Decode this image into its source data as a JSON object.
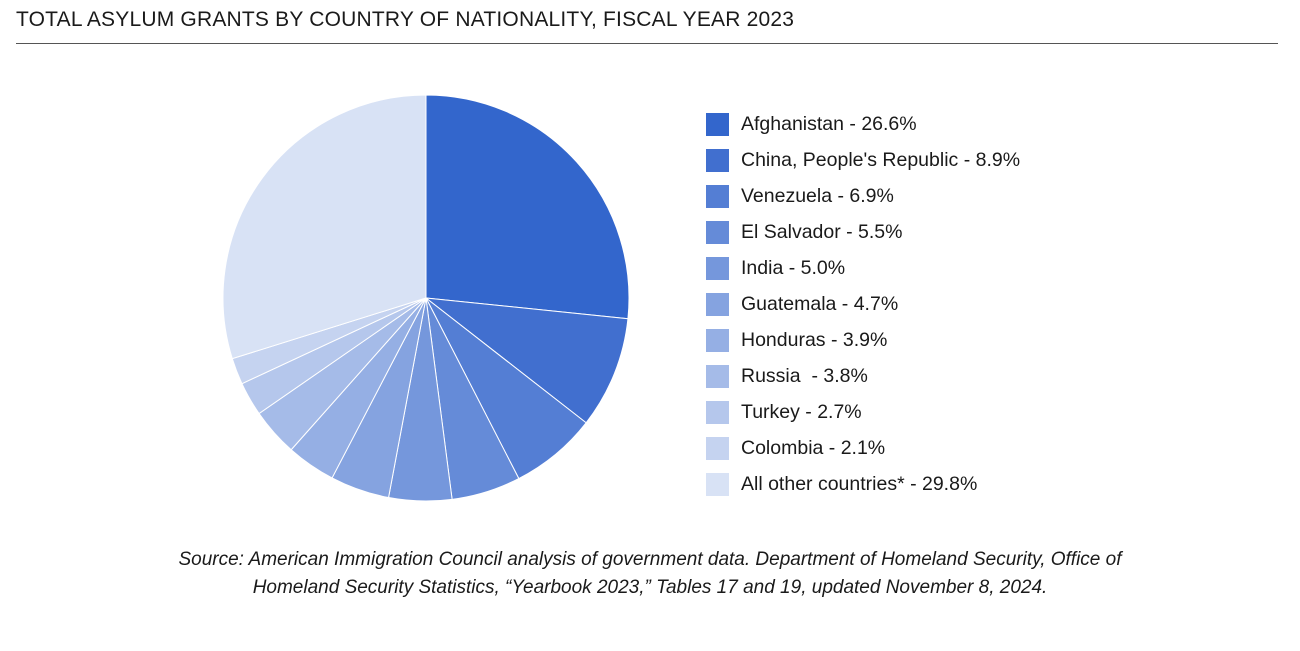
{
  "title": "TOTAL ASYLUM GRANTS BY COUNTRY OF NATIONALITY, FISCAL YEAR 2023",
  "source_line_1": "Source: American Immigration Council analysis of government data. Department of Homeland Security, Office of",
  "source_line_2": "Homeland Security Statistics, “Yearbook 2023,” Tables 17 and 19, updated November 8, 2024.",
  "chart_data": {
    "type": "pie",
    "title": "TOTAL ASYLUM GRANTS BY COUNTRY OF NATIONALITY, FISCAL YEAR 2023",
    "legend_position": "right",
    "unit": "%",
    "slices": [
      {
        "label": "Afghanistan - 26.6%",
        "name": "Afghanistan",
        "value": 26.6,
        "color": "#3366cc"
      },
      {
        "label": "China, People's Republic - 8.9%",
        "name": "China, People's Republic",
        "value": 8.9,
        "color": "#416fcf"
      },
      {
        "label": "Venezuela - 6.9%",
        "name": "Venezuela",
        "value": 6.9,
        "color": "#547ed4"
      },
      {
        "label": "El Salvador - 5.5%",
        "name": "El Salvador",
        "value": 5.5,
        "color": "#658bd8"
      },
      {
        "label": "India - 5.0%",
        "name": "India",
        "value": 5.0,
        "color": "#7597dc"
      },
      {
        "label": "Guatemala - 4.7%",
        "name": "Guatemala",
        "value": 4.7,
        "color": "#85a3e0"
      },
      {
        "label": "Honduras - 3.9%",
        "name": "Honduras",
        "value": 3.9,
        "color": "#95afe4"
      },
      {
        "label": "Russia  - 3.8%",
        "name": "Russia",
        "value": 3.8,
        "color": "#a5bbe8"
      },
      {
        "label": "Turkey - 2.7%",
        "name": "Turkey",
        "value": 2.7,
        "color": "#b5c7ec"
      },
      {
        "label": "Colombia - 2.1%",
        "name": "Colombia",
        "value": 2.1,
        "color": "#c5d3f0"
      },
      {
        "label": "All other countries* - 29.8%",
        "name": "All other countries*",
        "value": 29.8,
        "color": "#d8e2f5"
      }
    ]
  }
}
